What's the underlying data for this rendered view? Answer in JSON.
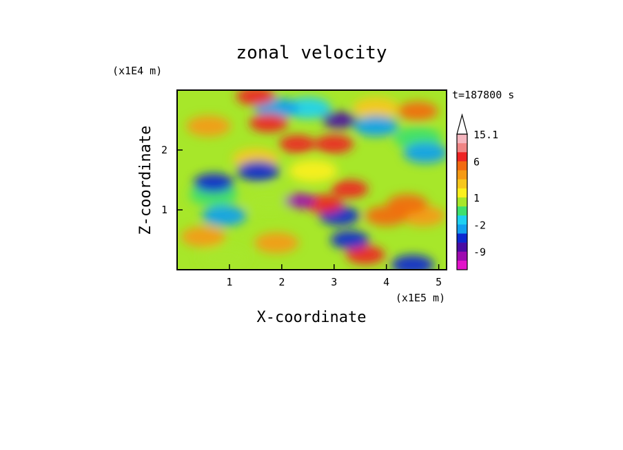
{
  "chart_data": {
    "type": "heatmap",
    "title": "zonal velocity",
    "xlabel": "X-coordinate",
    "ylabel": "Z-coordinate",
    "x_unit": "(x1E5 m)",
    "y_unit": "(x1E4 m)",
    "time_label": "t=187800 s",
    "xlim": [
      0,
      5.15
    ],
    "ylim": [
      0,
      3.0
    ],
    "x_ticks": [
      1,
      2,
      3,
      4,
      5
    ],
    "x_tick_labels": [
      "1",
      "2",
      "3",
      "4",
      "5"
    ],
    "y_ticks": [
      1,
      2
    ],
    "y_tick_labels": [
      "1",
      "2"
    ],
    "colorbar": {
      "levels": [
        15.1,
        12,
        9,
        6,
        4,
        3,
        2,
        1,
        0,
        -1,
        -2,
        -3,
        -6,
        -9,
        -12,
        -15
      ],
      "colors": [
        "#f5b6bf",
        "#f08585",
        "#ee2323",
        "#f26a10",
        "#f59a14",
        "#f7c71c",
        "#fbf01d",
        "#a7e72a",
        "#3ee06e",
        "#1ed1f1",
        "#12a0ef",
        "#0c28d0",
        "#4a0ca3",
        "#9e0ab0",
        "#e213ca"
      ],
      "tick_labels": [
        "15.1",
        "6",
        "1",
        "-2",
        "-9"
      ],
      "tick_levels": [
        15.1,
        6,
        1,
        -2,
        -9
      ]
    },
    "features": [
      {
        "x": 1.75,
        "z": 2.45,
        "value": 6
      },
      {
        "x": 2.3,
        "z": 2.1,
        "value": 7
      },
      {
        "x": 3.0,
        "z": 2.1,
        "value": 6
      },
      {
        "x": 4.6,
        "z": 2.65,
        "value": 5
      },
      {
        "x": 1.5,
        "z": 2.9,
        "value": 6
      },
      {
        "x": 3.3,
        "z": 1.35,
        "value": 7
      },
      {
        "x": 2.8,
        "z": 1.1,
        "value": 6
      },
      {
        "x": 4.4,
        "z": 1.1,
        "value": 5
      },
      {
        "x": 3.6,
        "z": 0.25,
        "value": 6
      },
      {
        "x": 1.9,
        "z": 0.45,
        "value": 3
      },
      {
        "x": 0.5,
        "z": 0.55,
        "value": 3
      },
      {
        "x": 0.6,
        "z": 2.4,
        "value": 3
      },
      {
        "x": 1.5,
        "z": 1.85,
        "value": 2
      },
      {
        "x": 3.8,
        "z": 2.7,
        "value": 2
      },
      {
        "x": 4.0,
        "z": 0.9,
        "value": 4
      },
      {
        "x": 4.7,
        "z": 0.9,
        "value": 3
      },
      {
        "x": 1.9,
        "z": 2.7,
        "value": -3
      },
      {
        "x": 2.5,
        "z": 2.7,
        "value": -2
      },
      {
        "x": 3.8,
        "z": 2.4,
        "value": -3
      },
      {
        "x": 3.1,
        "z": 2.5,
        "value": -8
      },
      {
        "x": 0.7,
        "z": 1.45,
        "value": -5
      },
      {
        "x": 2.35,
        "z": 1.15,
        "value": -12
      },
      {
        "x": 3.3,
        "z": 0.5,
        "value": -6
      },
      {
        "x": 3.1,
        "z": 0.9,
        "value": -5
      },
      {
        "x": 0.9,
        "z": 0.9,
        "value": -3
      },
      {
        "x": 4.5,
        "z": 0.08,
        "value": -4
      },
      {
        "x": 1.55,
        "z": 1.65,
        "value": -4
      },
      {
        "x": 4.75,
        "z": 1.95,
        "value": -3
      },
      {
        "x": 0.7,
        "z": 1.25,
        "value": -1
      },
      {
        "x": 0.9,
        "z": 0.2,
        "value": 0
      },
      {
        "x": 4.6,
        "z": 2.2,
        "value": -1
      },
      {
        "x": 1.75,
        "z": 1.15,
        "value": 0
      },
      {
        "x": 2.6,
        "z": 1.65,
        "value": 1
      }
    ]
  }
}
